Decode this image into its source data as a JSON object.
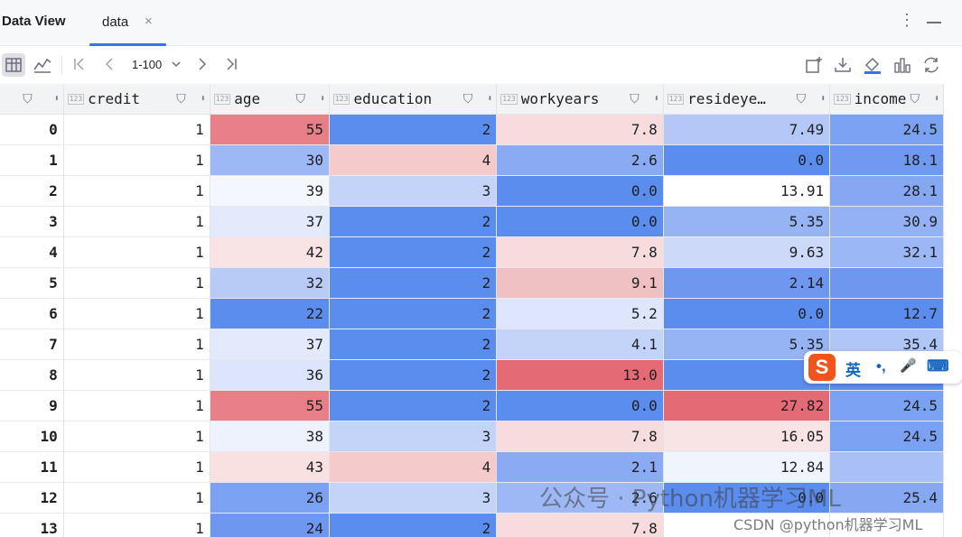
{
  "header": {
    "title": "Data View",
    "tab_label": "data",
    "tab_close": "×",
    "menu_glyph": "⋮"
  },
  "toolbar": {
    "page_range": "1-100"
  },
  "columns": [
    {
      "name": "",
      "type_badge": ""
    },
    {
      "name": "credit",
      "type_badge": "123"
    },
    {
      "name": "age",
      "type_badge": "123"
    },
    {
      "name": "education",
      "type_badge": "123"
    },
    {
      "name": "workyears",
      "type_badge": "123"
    },
    {
      "name": "resideye…",
      "type_badge": "123"
    },
    {
      "name": "income",
      "type_badge": "123"
    }
  ],
  "rows": [
    {
      "index": "0",
      "credit": "1",
      "age": "55",
      "education": "2",
      "workyears": "7.8",
      "resideyears": "7.49",
      "income": "24.5"
    },
    {
      "index": "1",
      "credit": "1",
      "age": "30",
      "education": "4",
      "workyears": "2.6",
      "resideyears": "0.0",
      "income": "18.1"
    },
    {
      "index": "2",
      "credit": "1",
      "age": "39",
      "education": "3",
      "workyears": "0.0",
      "resideyears": "13.91",
      "income": "28.1"
    },
    {
      "index": "3",
      "credit": "1",
      "age": "37",
      "education": "2",
      "workyears": "0.0",
      "resideyears": "5.35",
      "income": "30.9"
    },
    {
      "index": "4",
      "credit": "1",
      "age": "42",
      "education": "2",
      "workyears": "7.8",
      "resideyears": "9.63",
      "income": "32.1"
    },
    {
      "index": "5",
      "credit": "1",
      "age": "32",
      "education": "2",
      "workyears": "9.1",
      "resideyears": "2.14",
      "income": ""
    },
    {
      "index": "6",
      "credit": "1",
      "age": "22",
      "education": "2",
      "workyears": "5.2",
      "resideyears": "0.0",
      "income": "12.7"
    },
    {
      "index": "7",
      "credit": "1",
      "age": "37",
      "education": "2",
      "workyears": "4.1",
      "resideyears": "5.35",
      "income": "35.4"
    },
    {
      "index": "8",
      "credit": "1",
      "age": "36",
      "education": "2",
      "workyears": "13.0",
      "resideyears": "",
      "income": ""
    },
    {
      "index": "9",
      "credit": "1",
      "age": "55",
      "education": "2",
      "workyears": "0.0",
      "resideyears": "27.82",
      "income": "24.5"
    },
    {
      "index": "10",
      "credit": "1",
      "age": "38",
      "education": "3",
      "workyears": "7.8",
      "resideyears": "16.05",
      "income": "24.5"
    },
    {
      "index": "11",
      "credit": "1",
      "age": "43",
      "education": "4",
      "workyears": "2.1",
      "resideyears": "12.84",
      "income": ""
    },
    {
      "index": "12",
      "credit": "1",
      "age": "26",
      "education": "3",
      "workyears": "2.6",
      "resideyears": "0.0",
      "income": "25.4"
    },
    {
      "index": "13",
      "credit": "1",
      "age": "24",
      "education": "2",
      "workyears": "7.8",
      "resideyears": "",
      "income": ""
    }
  ],
  "cell_colors": [
    {
      "age": "#e87e86",
      "education": "#5b8def",
      "workyears": "#f7dcdd",
      "resideyears": "#b3c8f6",
      "income": "#7ba2f2"
    },
    {
      "age": "#9db8f5",
      "education": "#f4caca",
      "workyears": "#8aaaf3",
      "resideyears": "#5b8def",
      "income": "#7098f1"
    },
    {
      "age": "#f4f7fe",
      "education": "#c4d4f8",
      "workyears": "#5b8def",
      "resideyears": "#ffffff",
      "income": "#86a8f3"
    },
    {
      "age": "#e3eafc",
      "education": "#5b8def",
      "workyears": "#5b8def",
      "resideyears": "#96b3f4",
      "income": "#93b1f4"
    },
    {
      "age": "#f9e4e5",
      "education": "#5b8def",
      "workyears": "#f7dcdd",
      "resideyears": "#ccd9f9",
      "income": "#9bb7f5"
    },
    {
      "age": "#b8cbf6",
      "education": "#5b8def",
      "workyears": "#f0c1c3",
      "resideyears": "#6f97f0",
      "income": "#6f97f0"
    },
    {
      "age": "#5b8def",
      "education": "#5b8def",
      "workyears": "#dde6fc",
      "resideyears": "#5b8def",
      "income": "#5b8def"
    },
    {
      "age": "#e3eafc",
      "education": "#5b8def",
      "workyears": "#c4d4f8",
      "resideyears": "#96b3f4",
      "income": "#b0c6f6"
    },
    {
      "age": "#dce5fb",
      "education": "#5b8def",
      "workyears": "#e46a75",
      "resideyears": "#5b8def",
      "income": "#5b8def"
    },
    {
      "age": "#e87e86",
      "education": "#5b8def",
      "workyears": "#5b8def",
      "resideyears": "#e46a75",
      "income": "#7ba2f2"
    },
    {
      "age": "#eef2fd",
      "education": "#c4d4f8",
      "workyears": "#f7dcdd",
      "resideyears": "#f9e4e5",
      "income": "#7ba2f2"
    },
    {
      "age": "#f9e0e1",
      "education": "#f4caca",
      "workyears": "#8aaaf3",
      "resideyears": "#f0f4fd",
      "income": "#a8c0f5"
    },
    {
      "age": "#7ba2f2",
      "education": "#c4d4f8",
      "workyears": "#9db8f5",
      "resideyears": "#5b8def",
      "income": "#86a8f3"
    },
    {
      "age": "#6f97f0",
      "education": "#5b8def",
      "workyears": "#f7dcdd",
      "resideyears": "#ffffff",
      "income": "#ffffff"
    }
  ],
  "ime": {
    "logo": "S",
    "lang": "英",
    "punct": "•,",
    "mic": "🎤",
    "keyboard": "⌨"
  },
  "watermark": {
    "text": "公众号 · Python机器学习ML",
    "csdn": "CSDN @python机器学习ML"
  }
}
